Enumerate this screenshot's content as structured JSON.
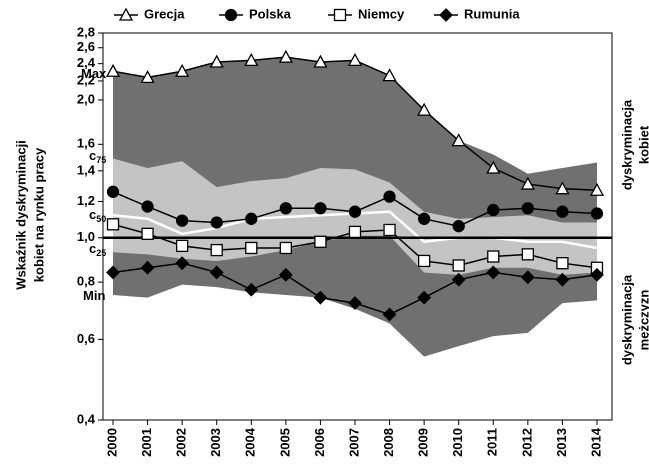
{
  "chart_data": {
    "type": "line",
    "y_label": [
      "Wskaźnik dyskryminacji",
      "kobiet na rynku pracy"
    ],
    "right_labels": [
      [
        "dyskryminacja",
        "kobiet"
      ],
      [
        "dyskryminacja",
        "mężczyzn"
      ]
    ],
    "categories": [
      "2000",
      "2001",
      "2002",
      "2003",
      "2004",
      "2005",
      "2006",
      "2007",
      "2008",
      "2009",
      "2010",
      "2011",
      "2012",
      "2013",
      "2014"
    ],
    "ylim": [
      0.4,
      2.8
    ],
    "log_scale": true,
    "reference_line": 1,
    "yticks": [
      {
        "value": 0.4,
        "label": "0,4"
      },
      {
        "value": 0.6,
        "label": "0,6"
      },
      {
        "value": 0.8,
        "label": "0,8"
      },
      {
        "value": 1,
        "label": "1,0"
      },
      {
        "value": 1.2,
        "label": "1,2"
      },
      {
        "value": 1.4,
        "label": "1,4"
      },
      {
        "value": 1.6,
        "label": "1,6"
      },
      {
        "value": 2,
        "label": "2,0"
      },
      {
        "value": 2.2,
        "label": "2,2"
      },
      {
        "value": 2.4,
        "label": "2,4"
      },
      {
        "value": 2.6,
        "label": "2,6"
      },
      {
        "value": 2.8,
        "label": "2,8"
      }
    ],
    "bands": {
      "max": {
        "label": "Max",
        "values": [
          2.31,
          2.24,
          2.31,
          2.42,
          2.44,
          2.48,
          2.42,
          2.44,
          2.26,
          1.9,
          1.63,
          1.52,
          1.38,
          1.42,
          1.46
        ]
      },
      "c75": {
        "label": "c",
        "sub": "75",
        "values": [
          1.49,
          1.42,
          1.47,
          1.29,
          1.33,
          1.35,
          1.42,
          1.41,
          1.32,
          1.14,
          1.1,
          1.11,
          1.12,
          1.08,
          1.08
        ]
      },
      "c50": {
        "label": "c",
        "sub": "50",
        "values": [
          1.12,
          1.1,
          1.02,
          1.05,
          1.1,
          1.11,
          1.12,
          1.13,
          1.14,
          0.98,
          1.0,
          1.0,
          0.98,
          0.98,
          0.95
        ]
      },
      "c25": {
        "label": "c",
        "sub": "25",
        "values": [
          0.93,
          0.92,
          0.9,
          0.89,
          0.91,
          0.94,
          0.98,
          1.01,
          1.01,
          0.84,
          0.83,
          0.86,
          0.86,
          0.83,
          0.84
        ]
      },
      "min": {
        "label": "Min",
        "values": [
          0.75,
          0.74,
          0.79,
          0.78,
          0.76,
          0.75,
          0.74,
          0.7,
          0.65,
          0.55,
          0.58,
          0.61,
          0.62,
          0.72,
          0.73
        ]
      }
    },
    "band_colors": {
      "outer": "#707070",
      "inner": "#c4c4c4",
      "median": "#ffffff"
    },
    "series": [
      {
        "name": "Grecja",
        "marker": "triangle",
        "color": "#000000",
        "values": [
          2.31,
          2.24,
          2.31,
          2.42,
          2.44,
          2.48,
          2.42,
          2.44,
          2.26,
          1.9,
          1.63,
          1.42,
          1.31,
          1.28,
          1.27
        ]
      },
      {
        "name": "Polska",
        "marker": "circle",
        "color": "#000000",
        "values": [
          1.26,
          1.17,
          1.09,
          1.08,
          1.1,
          1.16,
          1.16,
          1.14,
          1.23,
          1.1,
          1.06,
          1.15,
          1.16,
          1.14,
          1.13
        ]
      },
      {
        "name": "Niemcy",
        "marker": "square",
        "color": "#000000",
        "values": [
          1.07,
          1.02,
          0.96,
          0.94,
          0.95,
          0.95,
          0.98,
          1.03,
          1.04,
          0.89,
          0.87,
          0.91,
          0.92,
          0.88,
          0.86
        ]
      },
      {
        "name": "Rumunia",
        "marker": "diamond",
        "color": "#000000",
        "values": [
          0.84,
          0.86,
          0.88,
          0.84,
          0.77,
          0.83,
          0.74,
          0.72,
          0.68,
          0.74,
          0.81,
          0.84,
          0.82,
          0.81,
          0.83
        ]
      }
    ]
  }
}
